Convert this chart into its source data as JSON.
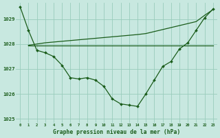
{
  "title": "Graphe pression niveau de la mer (hPa)",
  "background_color": "#c8e8e0",
  "grid_color": "#99ccbb",
  "line_color": "#1a5c1a",
  "hours": [
    0,
    1,
    2,
    3,
    4,
    5,
    6,
    7,
    8,
    9,
    10,
    11,
    12,
    13,
    14,
    15,
    16,
    17,
    18,
    19,
    20,
    21,
    22,
    23
  ],
  "observed": [
    1029.5,
    1028.55,
    1027.75,
    1027.65,
    1027.5,
    1027.15,
    1026.65,
    1026.6,
    1026.65,
    1026.55,
    1026.3,
    1025.8,
    1025.6,
    1025.55,
    1025.5,
    1026.0,
    1026.55,
    1027.1,
    1027.3,
    1027.8,
    1028.05,
    1028.55,
    1029.05,
    1029.4
  ],
  "line_flat": [
    null,
    1027.95,
    1027.95,
    1027.95,
    1027.95,
    1027.95,
    1027.95,
    1027.95,
    1027.95,
    1027.95,
    1027.95,
    1027.95,
    1027.95,
    1027.95,
    1027.95,
    1027.95,
    1027.95,
    1027.95,
    1027.95,
    1027.95,
    1027.95,
    1027.95,
    1027.95,
    1027.95
  ],
  "line_rising": [
    null,
    1027.95,
    1028.0,
    1028.05,
    1028.08,
    1028.11,
    1028.14,
    1028.17,
    1028.2,
    1028.23,
    1028.26,
    1028.29,
    1028.32,
    1028.35,
    1028.38,
    1028.42,
    1028.5,
    1028.58,
    1028.66,
    1028.74,
    1028.82,
    1028.9,
    1029.15,
    1029.38
  ],
  "ylim": [
    1024.85,
    1029.65
  ],
  "yticks": [
    1025,
    1026,
    1027,
    1028,
    1029
  ],
  "xticks": [
    0,
    1,
    2,
    3,
    4,
    5,
    6,
    7,
    8,
    9,
    10,
    11,
    12,
    13,
    14,
    15,
    16,
    17,
    18,
    19,
    20,
    21,
    22,
    23
  ]
}
